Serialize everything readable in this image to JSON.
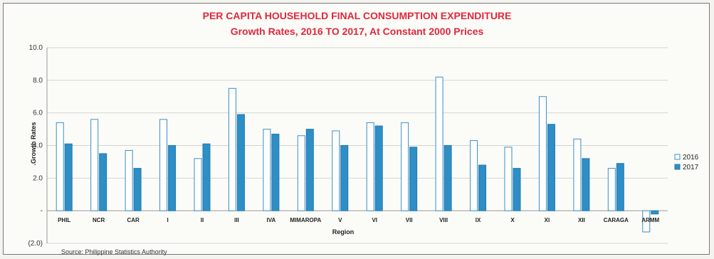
{
  "title": "PER CAPITA HOUSEHOLD FINAL CONSUMPTION EXPENDITURE",
  "subtitle": "Growth Rates, 2016 TO 2017, At Constant 2000 Prices",
  "source": "Source: Philippine Statistics Authority",
  "chart_data": {
    "type": "bar",
    "title": "PER CAPITA HOUSEHOLD FINAL CONSUMPTION EXPENDITURE",
    "subtitle": "Growth Rates, 2016 TO 2017, At Constant 2000 Prices",
    "xlabel": "Region",
    "ylabel": ".Growth Rates",
    "ylim": [
      -2,
      10
    ],
    "yticks": [
      {
        "value": -2,
        "label": "(2.0)"
      },
      {
        "value": 0,
        "label": "-"
      },
      {
        "value": 2,
        "label": "2.0"
      },
      {
        "value": 4,
        "label": "4.0"
      },
      {
        "value": 6,
        "label": "6.0"
      },
      {
        "value": 8,
        "label": "8.0"
      },
      {
        "value": 10,
        "label": "10.0"
      }
    ],
    "grid": true,
    "legend_position": "right",
    "categories": [
      "PHIL",
      "NCR",
      "CAR",
      "I",
      "II",
      "III",
      "IVA",
      "MIMAROPA",
      "V",
      "VI",
      "VII",
      "VIII",
      "IX",
      "X",
      "XI",
      "XII",
      "CARAGA",
      "ARMM"
    ],
    "series": [
      {
        "name": "2016",
        "color": "#ffffff",
        "stroke": "#3a8fc4",
        "values": [
          5.4,
          5.6,
          3.7,
          5.6,
          3.2,
          7.5,
          5.0,
          4.6,
          4.9,
          5.4,
          5.4,
          8.2,
          4.3,
          3.9,
          7.0,
          4.4,
          2.6,
          -1.3
        ]
      },
      {
        "name": "2017",
        "color": "#2e8ec6",
        "stroke": "#2679ad",
        "values": [
          4.1,
          3.5,
          2.6,
          4.0,
          4.1,
          5.9,
          4.7,
          5.0,
          4.0,
          5.2,
          3.9,
          4.0,
          2.8,
          2.6,
          5.3,
          3.2,
          2.9,
          -0.2
        ]
      }
    ]
  }
}
